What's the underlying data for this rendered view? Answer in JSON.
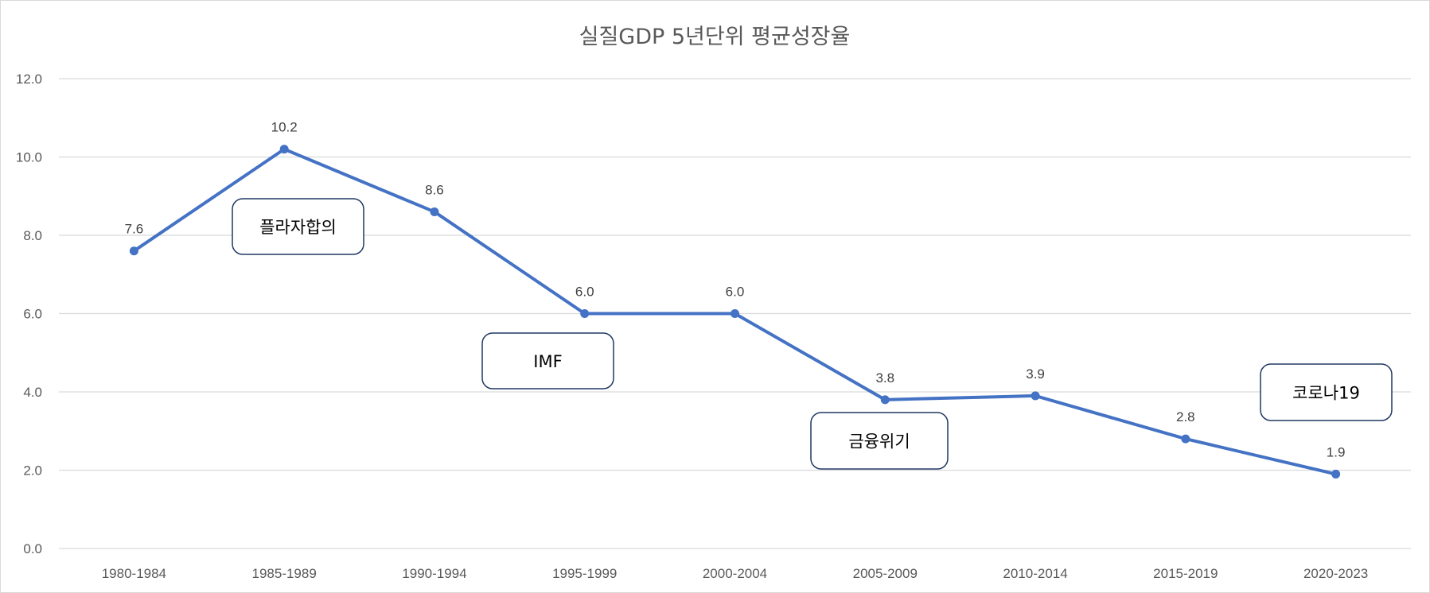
{
  "chart_data": {
    "type": "line",
    "title": "실질GDP 5년단위 평균성장율",
    "xlabel": "",
    "ylabel": "",
    "ylim": [
      0,
      12
    ],
    "yticks": [
      "0.0",
      "2.0",
      "4.0",
      "6.0",
      "8.0",
      "10.0",
      "12.0"
    ],
    "grid": true,
    "categories": [
      "1980-1984",
      "1985-1989",
      "1990-1994",
      "1995-1999",
      "2000-2004",
      "2005-2009",
      "2010-2014",
      "2015-2019",
      "2020-2023"
    ],
    "series": [
      {
        "name": "실질GDP 5년단위 평균성장율",
        "values": [
          7.6,
          10.2,
          8.6,
          6.0,
          6.0,
          3.8,
          3.9,
          2.8,
          1.9
        ],
        "labels": [
          "7.6",
          "10.2",
          "8.6",
          "6.0",
          "6.0",
          "3.8",
          "3.9",
          "2.8",
          "1.9"
        ],
        "color": "#4472c4"
      }
    ],
    "annotations": [
      {
        "text": "플라자합의",
        "near_category": "1985-1989"
      },
      {
        "text": "IMF",
        "near_category": "1995-1999"
      },
      {
        "text": "금융위기",
        "near_category": "2005-2009"
      },
      {
        "text": "코로나19",
        "near_category": "2020-2023"
      }
    ]
  }
}
